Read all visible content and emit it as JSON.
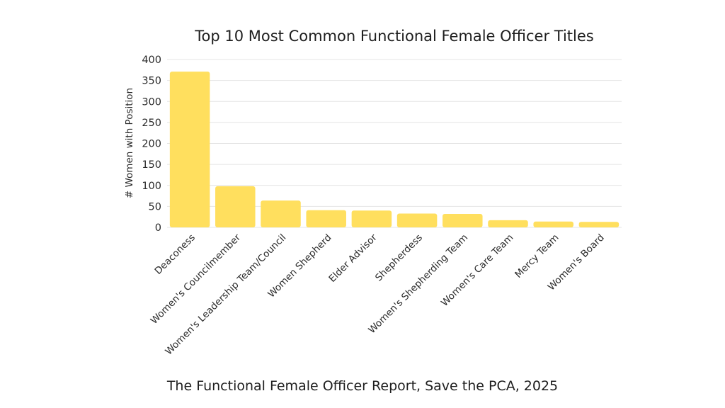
{
  "chart_data": {
    "type": "bar",
    "title": "Top 10 Most Common Functional Female Officer Titles",
    "caption": "The Functional Female Officer Report, Save the PCA, 2025",
    "xlabel": "",
    "ylabel": "# Women with Position",
    "ylim": [
      0,
      400
    ],
    "yticks": [
      0,
      50,
      100,
      150,
      200,
      250,
      300,
      350,
      400
    ],
    "grid": true,
    "bar_color": "#FFDF5E",
    "categories": [
      "Deaconess",
      "Women's Councilmember",
      "Women's Leadership Team/Council",
      "Women Shepherd",
      "Elder Advisor",
      "Shepherdess",
      "Women's Shepherding Team",
      "Women's Care Team",
      "Mercy Team",
      "Women's Board"
    ],
    "values": [
      371,
      98,
      64,
      41,
      40,
      33,
      32,
      17,
      14,
      13
    ]
  }
}
